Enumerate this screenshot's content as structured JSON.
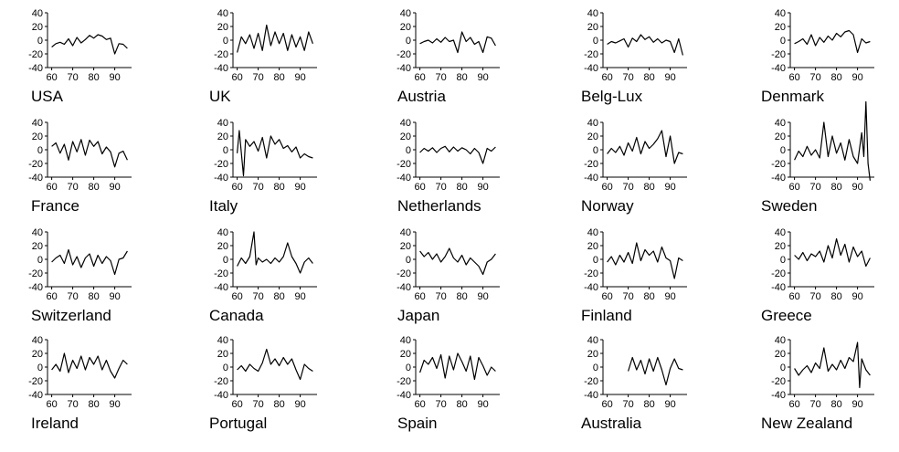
{
  "chart_data": [
    {
      "type": "line",
      "title": "USA",
      "x_ticks": [
        "60",
        "70",
        "80",
        "90"
      ],
      "y_ticks": [
        "40",
        "20",
        "0",
        "-20",
        "-40"
      ],
      "xlim": [
        1958,
        1998
      ],
      "ylim": [
        -40,
        40
      ],
      "x": [
        1960,
        1962,
        1964,
        1966,
        1968,
        1970,
        1972,
        1974,
        1976,
        1978,
        1980,
        1982,
        1984,
        1986,
        1988,
        1990,
        1992,
        1994,
        1996
      ],
      "y": [
        -10,
        -5,
        -3,
        -6,
        2,
        -8,
        4,
        -4,
        1,
        7,
        3,
        8,
        6,
        1,
        3,
        -20,
        -5,
        -6,
        -12
      ]
    },
    {
      "type": "line",
      "title": "UK",
      "x_ticks": [
        "60",
        "70",
        "80",
        "90"
      ],
      "y_ticks": [
        "40",
        "20",
        "0",
        "-20",
        "-40"
      ],
      "xlim": [
        1958,
        1998
      ],
      "ylim": [
        -40,
        40
      ],
      "x": [
        1960,
        1962,
        1964,
        1966,
        1968,
        1970,
        1972,
        1974,
        1976,
        1978,
        1980,
        1982,
        1984,
        1986,
        1988,
        1990,
        1992,
        1994,
        1996
      ],
      "y": [
        -18,
        5,
        -5,
        8,
        -12,
        10,
        -15,
        22,
        -8,
        12,
        -5,
        10,
        -15,
        8,
        -10,
        5,
        -15,
        12,
        -5
      ]
    },
    {
      "type": "line",
      "title": "Austria",
      "x_ticks": [
        "60",
        "70",
        "80",
        "90"
      ],
      "y_ticks": [
        "40",
        "20",
        "0",
        "-20",
        "-40"
      ],
      "xlim": [
        1958,
        1998
      ],
      "ylim": [
        -40,
        40
      ],
      "x": [
        1960,
        1962,
        1964,
        1966,
        1968,
        1970,
        1972,
        1974,
        1976,
        1978,
        1980,
        1982,
        1984,
        1986,
        1988,
        1990,
        1992,
        1994,
        1996
      ],
      "y": [
        -5,
        -2,
        0,
        -4,
        2,
        -3,
        4,
        -2,
        0,
        -18,
        12,
        -2,
        4,
        -6,
        -2,
        -18,
        5,
        3,
        -8
      ]
    },
    {
      "type": "line",
      "title": "Belg-Lux",
      "x_ticks": [
        "60",
        "70",
        "80",
        "90"
      ],
      "y_ticks": [
        "40",
        "20",
        "0",
        "-20",
        "-40"
      ],
      "xlim": [
        1958,
        1998
      ],
      "ylim": [
        -40,
        40
      ],
      "x": [
        1960,
        1962,
        1964,
        1966,
        1968,
        1970,
        1972,
        1974,
        1976,
        1978,
        1980,
        1982,
        1984,
        1986,
        1988,
        1990,
        1992,
        1994,
        1996
      ],
      "y": [
        -6,
        -2,
        -4,
        -1,
        2,
        -10,
        3,
        -2,
        8,
        1,
        5,
        -3,
        2,
        -4,
        0,
        -2,
        -18,
        2,
        -22
      ]
    },
    {
      "type": "line",
      "title": "Denmark",
      "x_ticks": [
        "60",
        "70",
        "80",
        "90"
      ],
      "y_ticks": [
        "40",
        "20",
        "0",
        "-20",
        "-40"
      ],
      "xlim": [
        1958,
        1998
      ],
      "ylim": [
        -40,
        40
      ],
      "x": [
        1960,
        1962,
        1964,
        1966,
        1968,
        1970,
        1972,
        1974,
        1976,
        1978,
        1980,
        1982,
        1984,
        1986,
        1988,
        1990,
        1992,
        1994,
        1996
      ],
      "y": [
        -5,
        -2,
        2,
        -6,
        8,
        -8,
        4,
        -3,
        6,
        0,
        10,
        5,
        12,
        14,
        8,
        -18,
        2,
        -4,
        -2
      ]
    },
    {
      "type": "line",
      "title": "France",
      "x_ticks": [
        "60",
        "70",
        "80",
        "90"
      ],
      "y_ticks": [
        "40",
        "20",
        "0",
        "-20",
        "-40"
      ],
      "xlim": [
        1958,
        1998
      ],
      "ylim": [
        -40,
        40
      ],
      "x": [
        1960,
        1962,
        1964,
        1966,
        1968,
        1970,
        1972,
        1974,
        1976,
        1978,
        1980,
        1982,
        1984,
        1986,
        1988,
        1990,
        1992,
        1994,
        1996
      ],
      "y": [
        5,
        10,
        -5,
        8,
        -15,
        12,
        -3,
        15,
        -8,
        14,
        5,
        12,
        -6,
        4,
        -3,
        -25,
        -5,
        -2,
        -15
      ]
    },
    {
      "type": "line",
      "title": "Italy",
      "x_ticks": [
        "60",
        "70",
        "80",
        "90"
      ],
      "y_ticks": [
        "40",
        "20",
        "0",
        "-20",
        "-40"
      ],
      "xlim": [
        1958,
        1998
      ],
      "ylim": [
        -40,
        40
      ],
      "x": [
        1960,
        1961,
        1962,
        1963,
        1964,
        1966,
        1968,
        1970,
        1972,
        1974,
        1976,
        1978,
        1980,
        1982,
        1984,
        1986,
        1988,
        1990,
        1992,
        1994,
        1996
      ],
      "y": [
        -5,
        28,
        -5,
        -38,
        15,
        5,
        12,
        -2,
        18,
        -12,
        20,
        8,
        15,
        2,
        6,
        -3,
        4,
        -12,
        -6,
        -10,
        -12
      ]
    },
    {
      "type": "line",
      "title": "Netherlands",
      "x_ticks": [
        "60",
        "70",
        "80",
        "90"
      ],
      "y_ticks": [
        "40",
        "20",
        "0",
        "-20",
        "-40"
      ],
      "xlim": [
        1958,
        1998
      ],
      "ylim": [
        -40,
        40
      ],
      "x": [
        1960,
        1962,
        1964,
        1966,
        1968,
        1970,
        1972,
        1974,
        1976,
        1978,
        1980,
        1982,
        1984,
        1986,
        1988,
        1990,
        1992,
        1994,
        1996
      ],
      "y": [
        -4,
        2,
        -2,
        3,
        -4,
        2,
        5,
        -3,
        4,
        -2,
        3,
        0,
        -6,
        2,
        -4,
        -20,
        2,
        -2,
        4
      ]
    },
    {
      "type": "line",
      "title": "Norway",
      "x_ticks": [
        "60",
        "70",
        "80",
        "90"
      ],
      "y_ticks": [
        "40",
        "20",
        "0",
        "-20",
        "-40"
      ],
      "xlim": [
        1958,
        1998
      ],
      "ylim": [
        -40,
        40
      ],
      "x": [
        1960,
        1962,
        1964,
        1966,
        1968,
        1970,
        1972,
        1974,
        1976,
        1978,
        1980,
        1982,
        1984,
        1986,
        1988,
        1990,
        1992,
        1994,
        1996
      ],
      "y": [
        -6,
        2,
        -4,
        5,
        -8,
        10,
        -2,
        18,
        -6,
        12,
        2,
        8,
        16,
        28,
        -10,
        20,
        -20,
        -4,
        -6
      ]
    },
    {
      "type": "line",
      "title": "Sweden",
      "x_ticks": [
        "60",
        "70",
        "80",
        "90"
      ],
      "y_ticks": [
        "40",
        "20",
        "0",
        "-20",
        "-40"
      ],
      "xlim": [
        1958,
        1998
      ],
      "ylim": [
        -40,
        40
      ],
      "x": [
        1960,
        1962,
        1964,
        1966,
        1968,
        1970,
        1972,
        1974,
        1976,
        1978,
        1980,
        1982,
        1984,
        1986,
        1988,
        1990,
        1992,
        1993,
        1994,
        1995,
        1996
      ],
      "y": [
        -15,
        -2,
        -10,
        5,
        -8,
        0,
        -12,
        40,
        -10,
        20,
        -5,
        10,
        -15,
        15,
        -10,
        -20,
        25,
        -10,
        70,
        -20,
        -45
      ]
    },
    {
      "type": "line",
      "title": "Switzerland",
      "x_ticks": [
        "60",
        "70",
        "80",
        "90"
      ],
      "y_ticks": [
        "40",
        "20",
        "0",
        "-20",
        "-40"
      ],
      "xlim": [
        1958,
        1998
      ],
      "ylim": [
        -40,
        40
      ],
      "x": [
        1960,
        1962,
        1964,
        1966,
        1968,
        1970,
        1972,
        1974,
        1976,
        1978,
        1980,
        1982,
        1984,
        1986,
        1988,
        1990,
        1992,
        1994,
        1996
      ],
      "y": [
        -4,
        2,
        6,
        -6,
        14,
        -8,
        4,
        -12,
        2,
        8,
        -10,
        6,
        -6,
        4,
        -2,
        -22,
        0,
        2,
        12
      ]
    },
    {
      "type": "line",
      "title": "Canada",
      "x_ticks": [
        "60",
        "70",
        "80",
        "90"
      ],
      "y_ticks": [
        "40",
        "20",
        "0",
        "-20",
        "-40"
      ],
      "xlim": [
        1958,
        1998
      ],
      "ylim": [
        -40,
        40
      ],
      "x": [
        1960,
        1962,
        1964,
        1966,
        1968,
        1969,
        1970,
        1972,
        1974,
        1976,
        1978,
        1980,
        1982,
        1984,
        1986,
        1988,
        1990,
        1992,
        1994,
        1996
      ],
      "y": [
        -10,
        2,
        -6,
        4,
        40,
        -8,
        2,
        -4,
        0,
        -6,
        2,
        -4,
        4,
        24,
        4,
        -6,
        -20,
        -4,
        2,
        -6
      ]
    },
    {
      "type": "line",
      "title": "Japan",
      "x_ticks": [
        "60",
        "70",
        "80",
        "90"
      ],
      "y_ticks": [
        "40",
        "20",
        "0",
        "-20",
        "-40"
      ],
      "xlim": [
        1958,
        1998
      ],
      "ylim": [
        -40,
        40
      ],
      "x": [
        1960,
        1962,
        1964,
        1966,
        1968,
        1970,
        1972,
        1974,
        1976,
        1978,
        1980,
        1982,
        1984,
        1986,
        1988,
        1990,
        1992,
        1994,
        1996
      ],
      "y": [
        12,
        4,
        10,
        0,
        8,
        -4,
        4,
        16,
        2,
        -4,
        6,
        -8,
        2,
        -4,
        -10,
        -22,
        -4,
        0,
        8
      ]
    },
    {
      "type": "line",
      "title": "Finland",
      "x_ticks": [
        "60",
        "70",
        "80",
        "90"
      ],
      "y_ticks": [
        "40",
        "20",
        "0",
        "-20",
        "-40"
      ],
      "xlim": [
        1958,
        1998
      ],
      "ylim": [
        -40,
        40
      ],
      "x": [
        1960,
        1962,
        1964,
        1966,
        1968,
        1970,
        1972,
        1974,
        1976,
        1978,
        1980,
        1982,
        1984,
        1986,
        1988,
        1990,
        1992,
        1994,
        1996
      ],
      "y": [
        -4,
        4,
        -8,
        6,
        -4,
        10,
        -6,
        24,
        -2,
        14,
        6,
        12,
        -4,
        18,
        2,
        -2,
        -28,
        2,
        -2
      ]
    },
    {
      "type": "line",
      "title": "Greece",
      "x_ticks": [
        "60",
        "70",
        "80",
        "90"
      ],
      "y_ticks": [
        "40",
        "20",
        "0",
        "-20",
        "-40"
      ],
      "xlim": [
        1958,
        1998
      ],
      "ylim": [
        -40,
        40
      ],
      "x": [
        1960,
        1962,
        1964,
        1966,
        1968,
        1970,
        1972,
        1974,
        1976,
        1978,
        1980,
        1982,
        1984,
        1986,
        1988,
        1990,
        1992,
        1994,
        1996
      ],
      "y": [
        6,
        0,
        10,
        -2,
        8,
        4,
        12,
        -4,
        20,
        2,
        30,
        6,
        22,
        -4,
        18,
        4,
        12,
        -10,
        2
      ]
    },
    {
      "type": "line",
      "title": "Ireland",
      "x_ticks": [
        "60",
        "70",
        "80",
        "90"
      ],
      "y_ticks": [
        "40",
        "20",
        "0",
        "-20",
        "-40"
      ],
      "xlim": [
        1958,
        1998
      ],
      "ylim": [
        -40,
        40
      ],
      "x": [
        1960,
        1962,
        1964,
        1966,
        1968,
        1970,
        1972,
        1974,
        1976,
        1978,
        1980,
        1982,
        1984,
        1986,
        1988,
        1990,
        1992,
        1994,
        1996
      ],
      "y": [
        -4,
        4,
        -6,
        20,
        -8,
        10,
        -2,
        16,
        -4,
        14,
        4,
        16,
        -4,
        10,
        -6,
        -16,
        -2,
        10,
        4
      ]
    },
    {
      "type": "line",
      "title": "Portugal",
      "x_ticks": [
        "60",
        "70",
        "80",
        "90"
      ],
      "y_ticks": [
        "40",
        "20",
        "0",
        "-20",
        "-40"
      ],
      "xlim": [
        1958,
        1998
      ],
      "ylim": [
        -40,
        40
      ],
      "x": [
        1960,
        1962,
        1964,
        1966,
        1968,
        1970,
        1972,
        1974,
        1976,
        1978,
        1980,
        1982,
        1984,
        1986,
        1988,
        1990,
        1992,
        1994,
        1996
      ],
      "y": [
        -4,
        2,
        -6,
        4,
        -2,
        -6,
        6,
        26,
        4,
        12,
        2,
        14,
        4,
        12,
        -4,
        -18,
        4,
        -2,
        -6
      ]
    },
    {
      "type": "line",
      "title": "Spain",
      "x_ticks": [
        "60",
        "70",
        "80",
        "90"
      ],
      "y_ticks": [
        "40",
        "20",
        "0",
        "-20",
        "-40"
      ],
      "xlim": [
        1958,
        1998
      ],
      "ylim": [
        -40,
        40
      ],
      "x": [
        1960,
        1962,
        1964,
        1966,
        1968,
        1970,
        1972,
        1974,
        1976,
        1978,
        1980,
        1982,
        1984,
        1986,
        1988,
        1990,
        1992,
        1994,
        1996
      ],
      "y": [
        -8,
        10,
        4,
        14,
        -2,
        18,
        -16,
        16,
        -4,
        20,
        8,
        -6,
        16,
        -18,
        14,
        2,
        -12,
        0,
        -6
      ]
    },
    {
      "type": "line",
      "title": "Australia",
      "x_ticks": [
        "60",
        "70",
        "80",
        "90"
      ],
      "y_ticks": [
        "40",
        "20",
        "0",
        "-20",
        "-40"
      ],
      "xlim": [
        1958,
        1998
      ],
      "ylim": [
        -40,
        40
      ],
      "x": [
        1970,
        1972,
        1974,
        1976,
        1978,
        1980,
        1982,
        1984,
        1986,
        1988,
        1990,
        1992,
        1994,
        1996
      ],
      "y": [
        -6,
        14,
        -4,
        10,
        -10,
        12,
        -6,
        14,
        -4,
        -26,
        -2,
        12,
        -2,
        -4
      ]
    },
    {
      "type": "line",
      "title": "New Zealand",
      "x_ticks": [
        "60",
        "70",
        "80",
        "90"
      ],
      "y_ticks": [
        "40",
        "20",
        "0",
        "-20",
        "-40"
      ],
      "xlim": [
        1958,
        1998
      ],
      "ylim": [
        -40,
        40
      ],
      "x": [
        1960,
        1962,
        1964,
        1966,
        1968,
        1970,
        1972,
        1974,
        1976,
        1978,
        1980,
        1982,
        1984,
        1986,
        1988,
        1990,
        1991,
        1992,
        1994,
        1996
      ],
      "y": [
        -2,
        -12,
        -4,
        2,
        -8,
        6,
        -2,
        28,
        -6,
        4,
        -4,
        10,
        -2,
        14,
        8,
        36,
        -30,
        12,
        -4,
        -12
      ]
    }
  ]
}
